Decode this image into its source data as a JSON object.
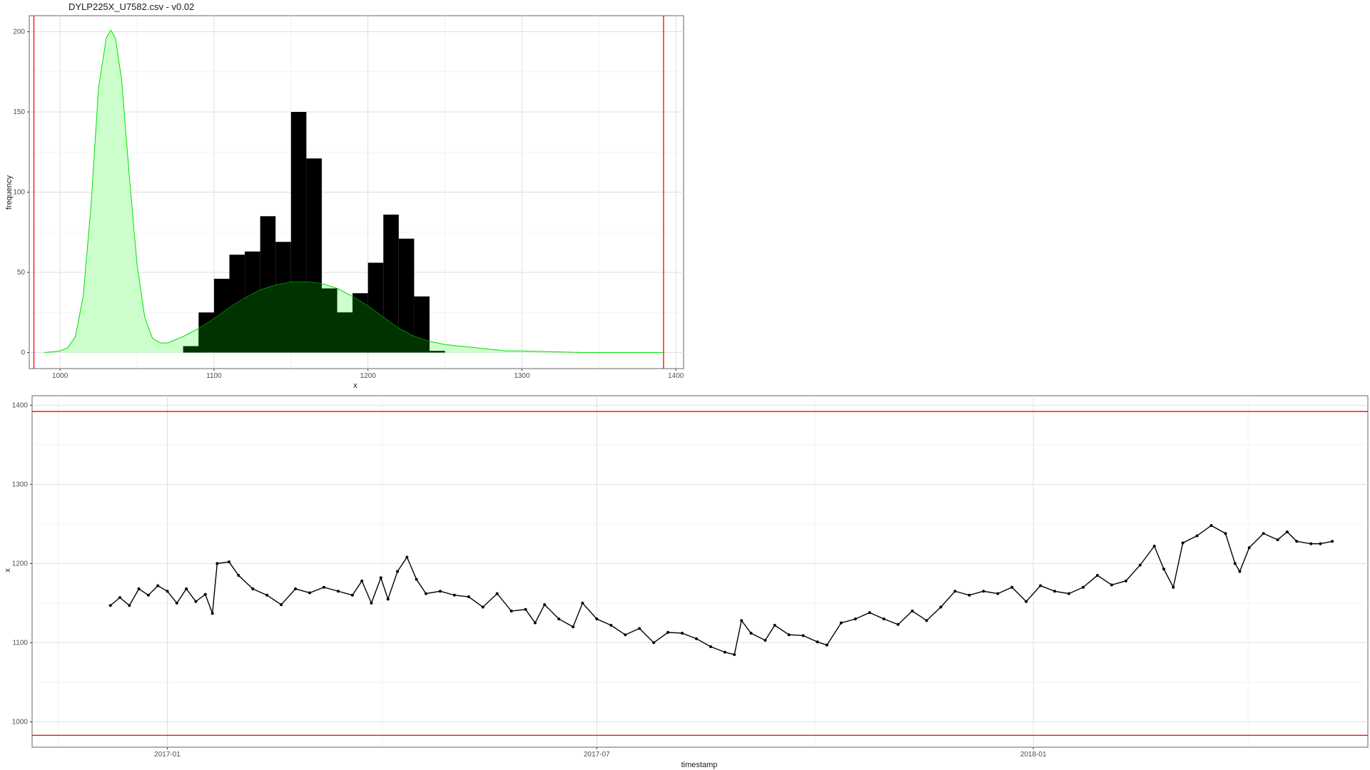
{
  "chart_data": [
    {
      "type": "histogram",
      "title": "DYLP225X_U7582.csv - v0.02",
      "xlabel": "x",
      "ylabel": "frequency",
      "xlim": [
        980,
        1405
      ],
      "ylim": [
        -10,
        210
      ],
      "x_ticks": [
        1000,
        1100,
        1200,
        1300,
        1400
      ],
      "y_ticks": [
        0,
        50,
        100,
        150,
        200
      ],
      "grid": true,
      "vertical_limit_lines": [
        983,
        1392
      ],
      "limit_line_color": "#ff0000",
      "bin_width": 10,
      "bins": [
        {
          "x_start": 1080,
          "count": 4
        },
        {
          "x_start": 1090,
          "count": 25
        },
        {
          "x_start": 1100,
          "count": 46
        },
        {
          "x_start": 1110,
          "count": 61
        },
        {
          "x_start": 1120,
          "count": 63
        },
        {
          "x_start": 1130,
          "count": 85
        },
        {
          "x_start": 1140,
          "count": 69
        },
        {
          "x_start": 1150,
          "count": 150
        },
        {
          "x_start": 1160,
          "count": 121
        },
        {
          "x_start": 1170,
          "count": 40
        },
        {
          "x_start": 1180,
          "count": 25
        },
        {
          "x_start": 1190,
          "count": 37
        },
        {
          "x_start": 1200,
          "count": 56
        },
        {
          "x_start": 1210,
          "count": 86
        },
        {
          "x_start": 1220,
          "count": 71
        },
        {
          "x_start": 1230,
          "count": 35
        },
        {
          "x_start": 1240,
          "count": 1
        }
      ],
      "bar_color": "#000000",
      "density_curve": {
        "color": "#00e000",
        "fill": "#ccffcc",
        "points": [
          [
            990,
            0
          ],
          [
            1000,
            1
          ],
          [
            1005,
            3
          ],
          [
            1010,
            10
          ],
          [
            1015,
            35
          ],
          [
            1020,
            90
          ],
          [
            1025,
            165
          ],
          [
            1030,
            196
          ],
          [
            1033,
            201
          ],
          [
            1036,
            196
          ],
          [
            1040,
            170
          ],
          [
            1045,
            110
          ],
          [
            1050,
            55
          ],
          [
            1055,
            22
          ],
          [
            1060,
            9
          ],
          [
            1065,
            6
          ],
          [
            1070,
            6
          ],
          [
            1075,
            8
          ],
          [
            1080,
            10
          ],
          [
            1090,
            15
          ],
          [
            1100,
            21
          ],
          [
            1110,
            28
          ],
          [
            1120,
            34
          ],
          [
            1130,
            39
          ],
          [
            1140,
            42
          ],
          [
            1150,
            44
          ],
          [
            1160,
            44
          ],
          [
            1170,
            43
          ],
          [
            1180,
            40
          ],
          [
            1190,
            35
          ],
          [
            1200,
            29
          ],
          [
            1210,
            22
          ],
          [
            1220,
            15
          ],
          [
            1230,
            10
          ],
          [
            1240,
            7
          ],
          [
            1250,
            5
          ],
          [
            1260,
            4
          ],
          [
            1270,
            3
          ],
          [
            1280,
            2
          ],
          [
            1290,
            1
          ],
          [
            1300,
            1
          ],
          [
            1320,
            0.5
          ],
          [
            1340,
            0
          ],
          [
            1392,
            0
          ]
        ]
      }
    },
    {
      "type": "line",
      "xlabel": "timestamp",
      "ylabel": "x",
      "xlim": [
        "2016-11-05",
        "2018-05-22"
      ],
      "ylim": [
        968,
        1412
      ],
      "x_ticks": [
        "2017-01",
        "2017-07",
        "2018-01"
      ],
      "y_ticks": [
        1000,
        1100,
        1200,
        1300,
        1400
      ],
      "grid": true,
      "horizontal_limit_lines": [
        983,
        1392
      ],
      "limit_line_color": "#ff0000",
      "line_color": "#000000",
      "marker": "point",
      "series": [
        {
          "points": [
            [
              "2016-12-08",
              1147
            ],
            [
              "2016-12-12",
              1157
            ],
            [
              "2016-12-16",
              1147
            ],
            [
              "2016-12-20",
              1168
            ],
            [
              "2016-12-24",
              1160
            ],
            [
              "2016-12-28",
              1172
            ],
            [
              "2017-01-01",
              1165
            ],
            [
              "2017-01-05",
              1150
            ],
            [
              "2017-01-09",
              1168
            ],
            [
              "2017-01-13",
              1152
            ],
            [
              "2017-01-17",
              1161
            ],
            [
              "2017-01-20",
              1137
            ],
            [
              "2017-01-22",
              1200
            ],
            [
              "2017-01-27",
              1202
            ],
            [
              "2017-01-31",
              1185
            ],
            [
              "2017-02-06",
              1168
            ],
            [
              "2017-02-12",
              1160
            ],
            [
              "2017-02-18",
              1148
            ],
            [
              "2017-02-24",
              1168
            ],
            [
              "2017-03-02",
              1163
            ],
            [
              "2017-03-08",
              1170
            ],
            [
              "2017-03-14",
              1165
            ],
            [
              "2017-03-20",
              1160
            ],
            [
              "2017-03-24",
              1178
            ],
            [
              "2017-03-28",
              1150
            ],
            [
              "2017-04-01",
              1182
            ],
            [
              "2017-04-04",
              1155
            ],
            [
              "2017-04-08",
              1190
            ],
            [
              "2017-04-12",
              1208
            ],
            [
              "2017-04-16",
              1180
            ],
            [
              "2017-04-20",
              1162
            ],
            [
              "2017-04-26",
              1165
            ],
            [
              "2017-05-02",
              1160
            ],
            [
              "2017-05-08",
              1158
            ],
            [
              "2017-05-14",
              1145
            ],
            [
              "2017-05-20",
              1162
            ],
            [
              "2017-05-26",
              1140
            ],
            [
              "2017-06-01",
              1142
            ],
            [
              "2017-06-05",
              1125
            ],
            [
              "2017-06-09",
              1148
            ],
            [
              "2017-06-15",
              1130
            ],
            [
              "2017-06-21",
              1120
            ],
            [
              "2017-06-25",
              1150
            ],
            [
              "2017-07-01",
              1130
            ],
            [
              "2017-07-07",
              1122
            ],
            [
              "2017-07-13",
              1110
            ],
            [
              "2017-07-19",
              1118
            ],
            [
              "2017-07-25",
              1100
            ],
            [
              "2017-07-31",
              1113
            ],
            [
              "2017-08-06",
              1112
            ],
            [
              "2017-08-12",
              1105
            ],
            [
              "2017-08-18",
              1095
            ],
            [
              "2017-08-24",
              1088
            ],
            [
              "2017-08-28",
              1085
            ],
            [
              "2017-08-31",
              1128
            ],
            [
              "2017-09-04",
              1112
            ],
            [
              "2017-09-10",
              1103
            ],
            [
              "2017-09-14",
              1122
            ],
            [
              "2017-09-20",
              1110
            ],
            [
              "2017-09-26",
              1109
            ],
            [
              "2017-10-02",
              1101
            ],
            [
              "2017-10-06",
              1097
            ],
            [
              "2017-10-12",
              1125
            ],
            [
              "2017-10-18",
              1130
            ],
            [
              "2017-10-24",
              1138
            ],
            [
              "2017-10-30",
              1130
            ],
            [
              "2017-11-05",
              1123
            ],
            [
              "2017-11-11",
              1140
            ],
            [
              "2017-11-17",
              1128
            ],
            [
              "2017-11-23",
              1145
            ],
            [
              "2017-11-29",
              1165
            ],
            [
              "2017-12-05",
              1160
            ],
            [
              "2017-12-11",
              1165
            ],
            [
              "2017-12-17",
              1162
            ],
            [
              "2017-12-23",
              1170
            ],
            [
              "2017-12-29",
              1152
            ],
            [
              "2018-01-04",
              1172
            ],
            [
              "2018-01-10",
              1165
            ],
            [
              "2018-01-16",
              1162
            ],
            [
              "2018-01-22",
              1170
            ],
            [
              "2018-01-28",
              1185
            ],
            [
              "2018-02-03",
              1173
            ],
            [
              "2018-02-09",
              1178
            ],
            [
              "2018-02-15",
              1198
            ],
            [
              "2018-02-21",
              1222
            ],
            [
              "2018-02-25",
              1193
            ],
            [
              "2018-03-01",
              1170
            ],
            [
              "2018-03-05",
              1226
            ],
            [
              "2018-03-11",
              1235
            ],
            [
              "2018-03-17",
              1248
            ],
            [
              "2018-03-23",
              1238
            ],
            [
              "2018-03-27",
              1200
            ],
            [
              "2018-03-29",
              1190
            ],
            [
              "2018-04-02",
              1220
            ],
            [
              "2018-04-08",
              1238
            ],
            [
              "2018-04-14",
              1230
            ],
            [
              "2018-04-18",
              1240
            ],
            [
              "2018-04-22",
              1228
            ],
            [
              "2018-04-28",
              1225
            ],
            [
              "2018-05-02",
              1225
            ],
            [
              "2018-05-07",
              1228
            ]
          ]
        }
      ]
    }
  ]
}
